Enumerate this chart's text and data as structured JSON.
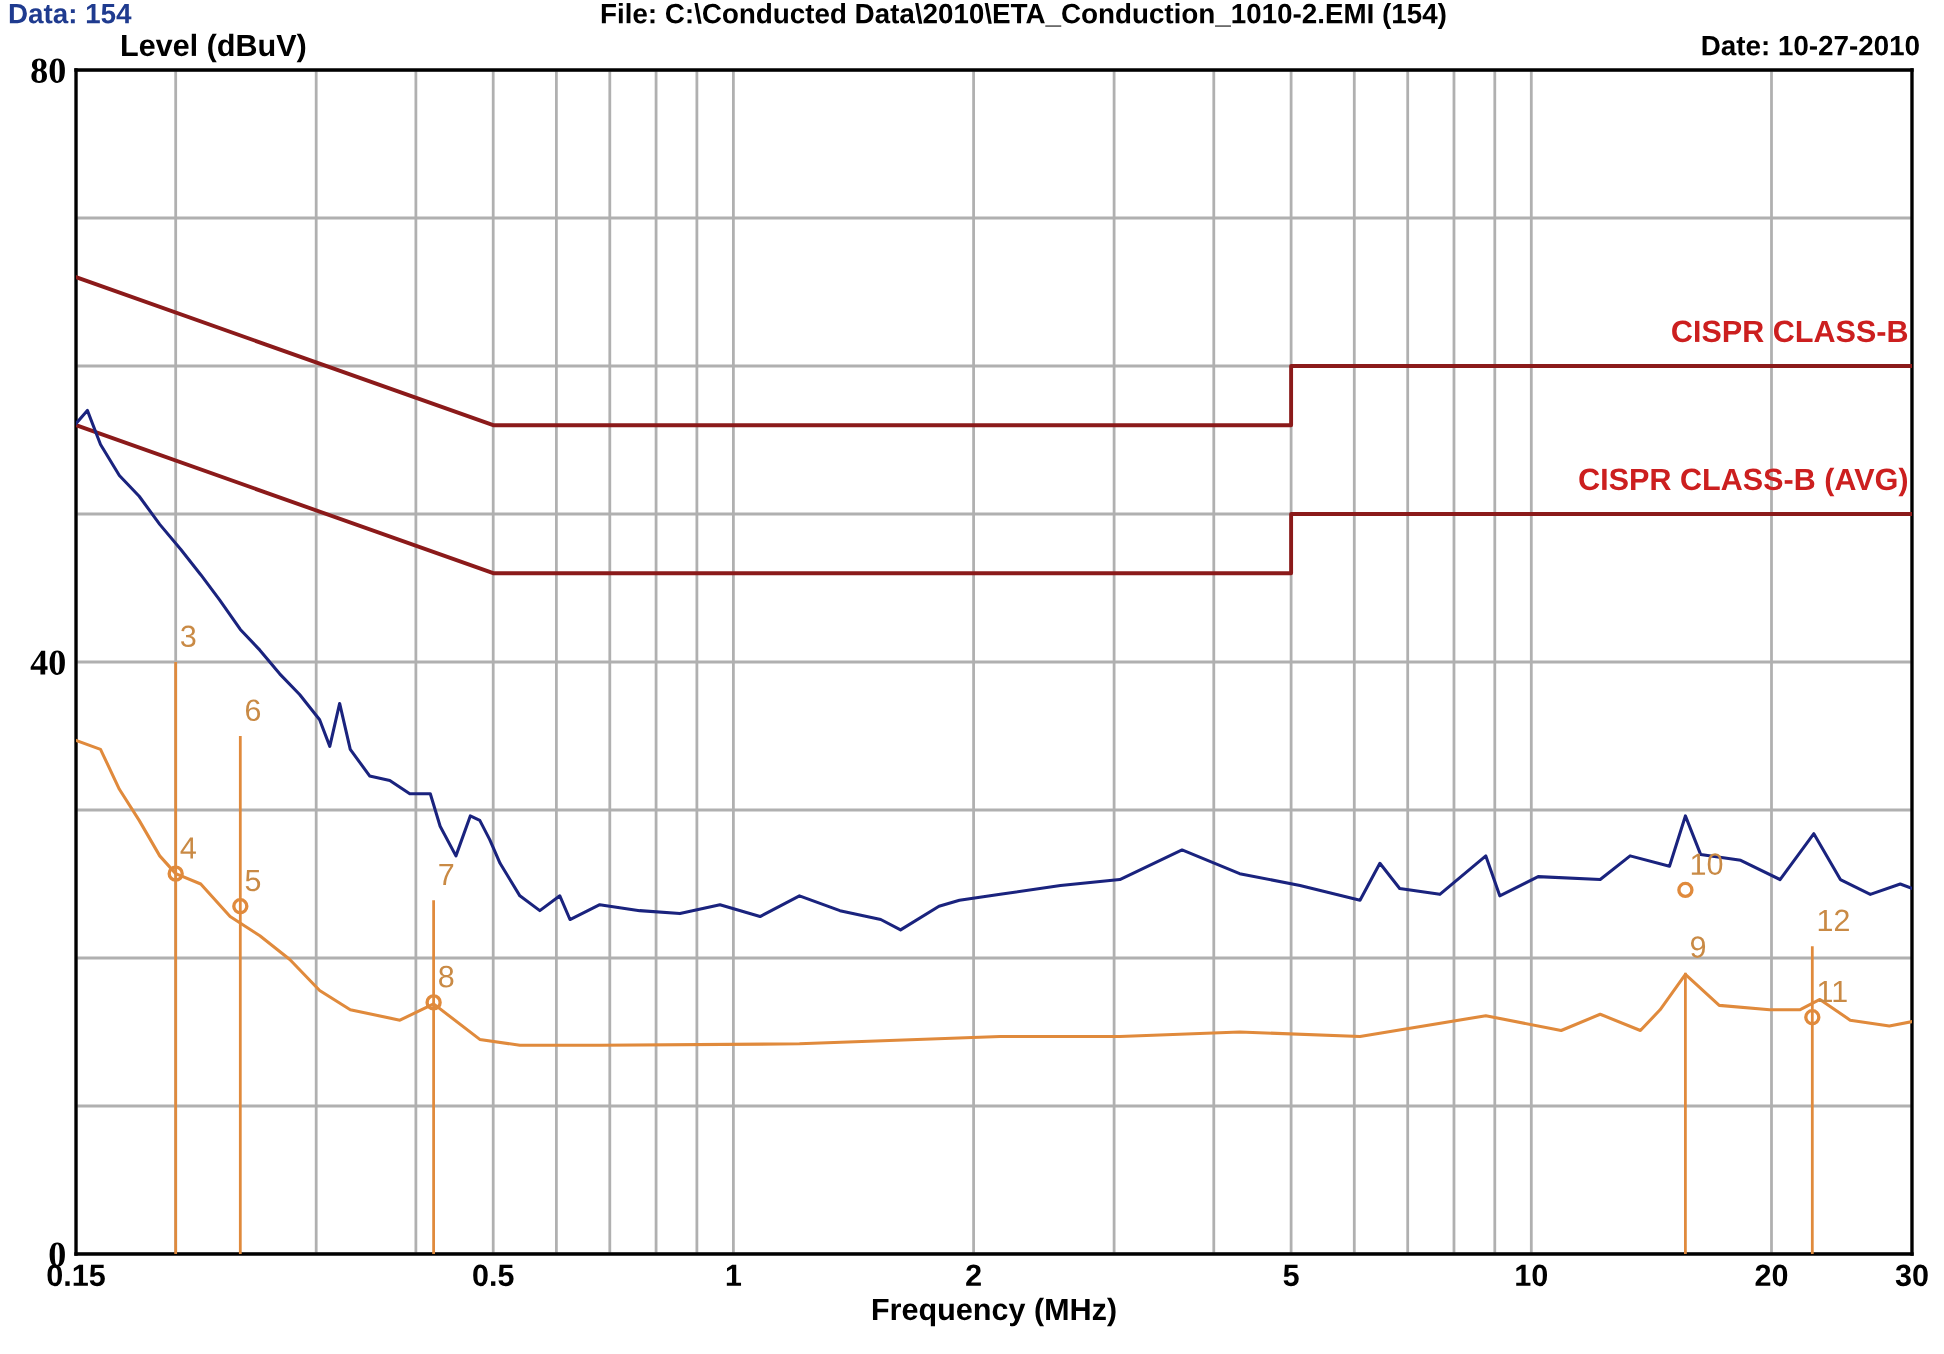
{
  "chart_data": {
    "type": "line",
    "xlabel": "Frequency (MHz)",
    "ylabel": "Level (dBuV)",
    "log": "x",
    "xlim": [
      0.15,
      30
    ],
    "ylim": [
      0,
      80
    ],
    "xticks": [
      0.15,
      {
        "value": 0.2,
        "label": null
      },
      {
        "value": 0.3,
        "label": null
      },
      {
        "value": 0.4,
        "label": null
      },
      0.5,
      {
        "value": 0.6,
        "label": null
      },
      {
        "value": 0.7,
        "label": null
      },
      {
        "value": 0.8,
        "label": null
      },
      {
        "value": 0.9,
        "label": null
      },
      1,
      2,
      {
        "value": 3,
        "label": null
      },
      {
        "value": 4,
        "label": null
      },
      5,
      {
        "value": 6,
        "label": null
      },
      {
        "value": 7,
        "label": null
      },
      {
        "value": 8,
        "label": null
      },
      {
        "value": 9,
        "label": null
      },
      10,
      20,
      30
    ],
    "yticks": [
      0,
      {
        "value": 10,
        "label": null
      },
      {
        "value": 20,
        "label": null
      },
      {
        "value": 30,
        "label": null
      },
      40,
      {
        "value": 50,
        "label": null
      },
      {
        "value": 60,
        "label": null
      },
      {
        "value": 70,
        "label": null
      },
      80
    ],
    "grid": true,
    "legend": false,
    "series": [
      {
        "name": "CISPR CLASS-B",
        "color": "#8b1a1a",
        "x": [
          0.15,
          0.5,
          5,
          5,
          30
        ],
        "values": [
          66,
          56,
          56,
          60,
          60
        ]
      },
      {
        "name": "CISPR CLASS-B (AVG)",
        "color": "#8b1a1a",
        "x": [
          0.15,
          0.5,
          5,
          5,
          30
        ],
        "values": [
          56,
          46,
          46,
          50,
          50
        ]
      },
      {
        "color": "#1a237e",
        "x": [
          0.15,
          0.155,
          0.161,
          0.17,
          0.18,
          0.191,
          0.203,
          0.215,
          0.227,
          0.241,
          0.255,
          0.27,
          0.286,
          0.303,
          0.312,
          0.321,
          0.331,
          0.35,
          0.371,
          0.393,
          0.417,
          0.429,
          0.449,
          0.468,
          0.481,
          0.495,
          0.51,
          0.54,
          0.572,
          0.606,
          0.624,
          0.68,
          0.763,
          0.857,
          0.962,
          1.08,
          1.21,
          1.36,
          1.53,
          1.62,
          1.81,
          1.92,
          2.16,
          2.57,
          3.05,
          3.65,
          4.31,
          5.13,
          6.1,
          6.46,
          6.84,
          7.68,
          8.77,
          9.13,
          10.2,
          12.2,
          13.3,
          14.9,
          15.6,
          16.3,
          18.3,
          20.5,
          22.6,
          24.4,
          26.6,
          29.0,
          30
        ],
        "values": [
          56.1,
          57.0,
          54.7,
          52.6,
          51.2,
          49.3,
          47.6,
          45.9,
          44.2,
          42.2,
          40.8,
          39.2,
          37.8,
          36.1,
          34.3,
          37.2,
          34.1,
          32.3,
          32.0,
          31.1,
          31.1,
          28.9,
          26.9,
          29.6,
          29.3,
          28.0,
          26.4,
          24.2,
          23.2,
          24.2,
          22.6,
          23.6,
          23.2,
          23.0,
          23.6,
          22.8,
          24.2,
          23.2,
          22.6,
          21.9,
          23.5,
          23.9,
          24.3,
          24.9,
          25.3,
          27.3,
          25.7,
          24.9,
          23.9,
          26.4,
          24.7,
          24.3,
          26.9,
          24.2,
          25.5,
          25.3,
          26.9,
          26.2,
          29.6,
          27.0,
          26.6,
          25.3,
          28.4,
          25.3,
          24.3,
          25.0,
          24.7
        ]
      },
      {
        "color": "#e08a3c",
        "x": [
          0.15,
          0.161,
          0.17,
          0.18,
          0.191,
          0.2,
          0.215,
          0.234,
          0.255,
          0.278,
          0.303,
          0.331,
          0.382,
          0.421,
          0.481,
          0.54,
          0.68,
          1.21,
          2.16,
          3.05,
          4.31,
          6.1,
          8.77,
          10.9,
          12.2,
          13.7,
          14.5,
          15.6,
          17.2,
          19.9,
          21.7,
          23.0,
          25.1,
          28.1,
          30
        ],
        "values": [
          34.7,
          34.1,
          31.4,
          29.3,
          26.9,
          25.7,
          25.0,
          22.8,
          21.5,
          19.9,
          17.8,
          16.5,
          15.8,
          16.9,
          14.5,
          14.1,
          14.1,
          14.2,
          14.7,
          14.7,
          15.0,
          14.7,
          16.1,
          15.1,
          16.2,
          15.1,
          16.5,
          18.9,
          16.8,
          16.5,
          16.5,
          17.2,
          15.8,
          15.4,
          15.7
        ]
      },
      {
        "type": "bar",
        "color": "#e08a3c",
        "x": [
          0.2,
          0.241,
          0.421,
          15.6,
          22.5
        ],
        "values": [
          40.0,
          35.0,
          23.9,
          19.0,
          20.8
        ]
      },
      {
        "type": "scatter",
        "color": "#e08a3c",
        "marker": "circle",
        "x": [
          0.2,
          0.241,
          0.421,
          15.6,
          22.5
        ],
        "values": [
          25.7,
          23.5,
          17.0,
          24.6,
          16.0
        ]
      }
    ],
    "annotations": [
      "Data: 154",
      "File: C:\\Conducted Data\\2010\\ETA_Conduction_1010-2.EMI (154)",
      "Date: 10-27-2010",
      {
        "text": "3",
        "x": 0.2,
        "y": 40.0
      },
      {
        "text": "4",
        "x": 0.2,
        "y": 25.7
      },
      {
        "text": "6",
        "x": 0.241,
        "y": 35.0
      },
      {
        "text": "5",
        "x": 0.241,
        "y": 23.5
      },
      {
        "text": "7",
        "x": 0.421,
        "y": 23.9
      },
      {
        "text": "8",
        "x": 0.421,
        "y": 17.0
      },
      {
        "text": "10",
        "x": 15.6,
        "y": 24.6
      },
      {
        "text": "9",
        "x": 15.6,
        "y": 19.0
      },
      {
        "text": "12",
        "x": 22.5,
        "y": 20.8
      },
      {
        "text": "11",
        "x": 22.5,
        "y": 16.0
      }
    ]
  }
}
